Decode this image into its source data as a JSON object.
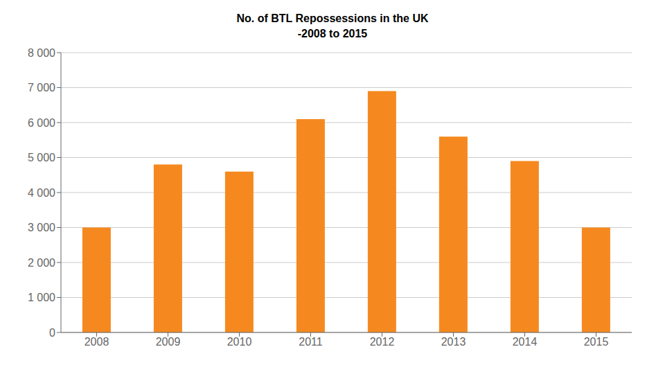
{
  "chart_data": {
    "type": "bar",
    "title": "No. of BTL Repossessions in the UK",
    "subtitle": "-2008 to 2015",
    "categories": [
      "2008",
      "2009",
      "2010",
      "2011",
      "2012",
      "2013",
      "2014",
      "2015"
    ],
    "values": [
      3000,
      4800,
      4600,
      6100,
      6900,
      5600,
      4900,
      3000
    ],
    "color": "#F5891F",
    "ylim": [
      0,
      8000
    ],
    "yticks": [
      0,
      {
        "value": 1000,
        "label": "1 000"
      },
      {
        "value": 2000,
        "label": "2 000"
      },
      {
        "value": 3000,
        "label": "3 000"
      },
      {
        "value": 4000,
        "label": "4 000"
      },
      {
        "value": 5000,
        "label": "5 000"
      },
      {
        "value": 6000,
        "label": "6 000"
      },
      {
        "value": 7000,
        "label": "7 000"
      },
      {
        "value": 8000,
        "label": "8 000"
      }
    ],
    "grid": true
  }
}
